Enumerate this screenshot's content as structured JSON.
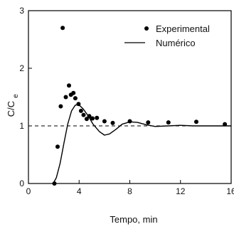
{
  "chart_data": {
    "type": "scatter",
    "xlabel": "Tempo, min",
    "ylabel_main": "C/C",
    "ylabel_sub": "e",
    "xlim": [
      0,
      16
    ],
    "ylim": [
      0,
      3
    ],
    "x_ticks": [
      0,
      4,
      8,
      12,
      16
    ],
    "x_tick_labels": [
      "0",
      "4",
      "8",
      "12",
      "16"
    ],
    "y_ticks": [
      0,
      1,
      2,
      3
    ],
    "y_tick_labels": [
      "0",
      "1",
      "2",
      "3"
    ],
    "grid": false,
    "legend_position": "top-right",
    "reference_line": {
      "y": 1,
      "style": "dashed"
    },
    "series": [
      {
        "name": "Experimental",
        "kind": "points",
        "color": "#000000",
        "points": [
          [
            2.05,
            0.0
          ],
          [
            2.3,
            0.64
          ],
          [
            2.55,
            1.34
          ],
          [
            2.7,
            2.7
          ],
          [
            2.95,
            1.5
          ],
          [
            3.2,
            1.7
          ],
          [
            3.35,
            1.54
          ],
          [
            3.55,
            1.57
          ],
          [
            3.7,
            1.48
          ],
          [
            3.95,
            1.38
          ],
          [
            4.15,
            1.26
          ],
          [
            4.35,
            1.19
          ],
          [
            4.6,
            1.12
          ],
          [
            4.8,
            1.17
          ],
          [
            5.05,
            1.13
          ],
          [
            5.4,
            1.14
          ],
          [
            6.0,
            1.08
          ],
          [
            6.65,
            1.05
          ],
          [
            8.0,
            1.08
          ],
          [
            9.45,
            1.06
          ],
          [
            11.05,
            1.06
          ],
          [
            13.25,
            1.07
          ],
          [
            15.5,
            1.03
          ]
        ]
      },
      {
        "name": "Numérico",
        "kind": "line",
        "color": "#000000",
        "points": [
          [
            1.9,
            0.0
          ],
          [
            2.0,
            0.02
          ],
          [
            2.2,
            0.1
          ],
          [
            2.5,
            0.35
          ],
          [
            2.8,
            0.7
          ],
          [
            3.1,
            1.03
          ],
          [
            3.4,
            1.26
          ],
          [
            3.7,
            1.36
          ],
          [
            3.95,
            1.37
          ],
          [
            4.3,
            1.3
          ],
          [
            4.7,
            1.18
          ],
          [
            5.1,
            1.03
          ],
          [
            5.6,
            0.9
          ],
          [
            6.0,
            0.84
          ],
          [
            6.4,
            0.86
          ],
          [
            6.9,
            0.94
          ],
          [
            7.4,
            1.03
          ],
          [
            8.0,
            1.07
          ],
          [
            8.6,
            1.06
          ],
          [
            9.3,
            1.02
          ],
          [
            10.0,
            0.99
          ],
          [
            11.0,
            1.0
          ],
          [
            12.0,
            1.01
          ],
          [
            13.0,
            1.0
          ],
          [
            14.0,
            1.0
          ],
          [
            15.0,
            1.0
          ],
          [
            16.0,
            1.0
          ]
        ]
      }
    ]
  }
}
